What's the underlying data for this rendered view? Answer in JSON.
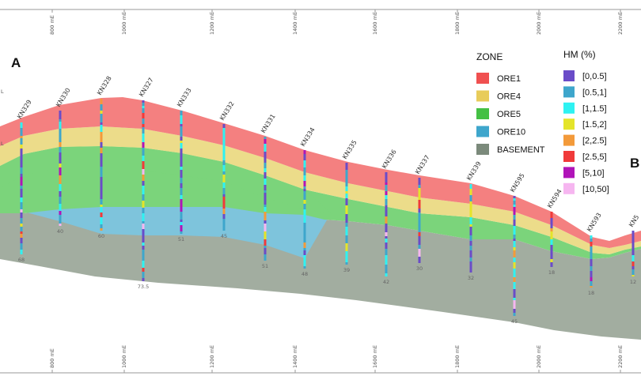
{
  "section": {
    "start_label": "A",
    "end_label": "B",
    "edge_letters": [
      "L",
      "L"
    ]
  },
  "axis": {
    "ticks": [
      "800 mE",
      "1000 mE",
      "1200 mE",
      "1400 mE",
      "1600 mE",
      "1800 mE",
      "2000 mE",
      "2200 mE"
    ]
  },
  "zone_legend": {
    "title": "ZONE",
    "items": [
      {
        "label": "ORE1",
        "color": "#f05050"
      },
      {
        "label": "ORE4",
        "color": "#e8cc5a"
      },
      {
        "label": "ORE5",
        "color": "#44c044"
      },
      {
        "label": "ORE10",
        "color": "#3ea6cc"
      },
      {
        "label": "BASEMENT",
        "color": "#7b8a7b"
      }
    ]
  },
  "hm_legend": {
    "title": "HM (%)",
    "items": [
      {
        "label": "[0,0.5]",
        "color": "#6a4cc8"
      },
      {
        "label": "[0.5,1]",
        "color": "#3ea6cc"
      },
      {
        "label": "[1,1.5]",
        "color": "#2ef2f2"
      },
      {
        "label": "[1.5,2]",
        "color": "#e4e42a"
      },
      {
        "label": "[2,2.5]",
        "color": "#f39a3a"
      },
      {
        "label": "[2.5,5]",
        "color": "#f03a3a"
      },
      {
        "label": "[5,10]",
        "color": "#b014b8"
      },
      {
        "label": "[10,50]",
        "color": "#f6b6f0"
      }
    ]
  },
  "drillholes": [
    {
      "name": "KN329",
      "depth": "68"
    },
    {
      "name": "KN330",
      "depth": "40"
    },
    {
      "name": "KN328",
      "depth": "60"
    },
    {
      "name": "KN327",
      "depth": "73.5"
    },
    {
      "name": "KN333",
      "depth": "51"
    },
    {
      "name": "KN332",
      "depth": "45"
    },
    {
      "name": "KN331",
      "depth": "51"
    },
    {
      "name": "KN334",
      "depth": "48"
    },
    {
      "name": "KN335",
      "depth": "39"
    },
    {
      "name": "KN336",
      "depth": "42"
    },
    {
      "name": "KN337",
      "depth": "30"
    },
    {
      "name": "KN339",
      "depth": "32"
    },
    {
      "name": "KN595",
      "depth": "45"
    },
    {
      "name": "KN594",
      "depth": "18"
    },
    {
      "name": "KN593",
      "depth": "18"
    },
    {
      "name": "KN5",
      "depth": "12"
    }
  ]
}
